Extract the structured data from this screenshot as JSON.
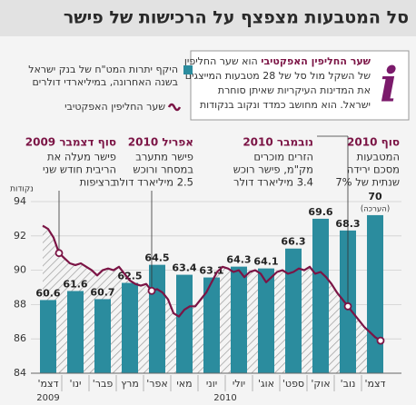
{
  "chart_data": {
    "type": "bar",
    "title": "סל המטבעות מצפצף על הרכישות של פישר",
    "info": {
      "heading": "שער החליפין האפקטיבי",
      "first_line_rest": "הוא שער החליפין",
      "lines": [
        "של השקל מול סל של 28 מטבעות המייצגים",
        "את המדינות העיקריות שאיתן סוחרת",
        "ישראל. הוא מחושב כמדד ונקוב בנקודות"
      ]
    },
    "y_unit": "נקודות",
    "categories": [
      "דצמ'",
      "ינו'",
      "פבר'",
      "מרץ",
      "אפר'",
      "מאי",
      "יוני",
      "יולי",
      "אוג'",
      "ספט'",
      "אוק'",
      "נוב'",
      "דצמ'"
    ],
    "years": [
      "2009",
      "2010"
    ],
    "xlim": [
      -0.5,
      12.5
    ],
    "ylim": [
      84,
      94
    ],
    "yticks": [
      84,
      86,
      88,
      90,
      92,
      94
    ],
    "y2lim": [
      52.5,
      71.5
    ],
    "grid": true,
    "series": [
      {
        "name": [
          "היקף יתרות המט\"ח של בנק ישראל",
          "בשנה האחרונה, במיליארדי דולרים"
        ],
        "type": "bar",
        "axis": "y2",
        "color": "#2b8c9e",
        "values": [
          60.6,
          61.6,
          60.7,
          62.5,
          64.5,
          63.4,
          63.1,
          64.3,
          64.1,
          66.3,
          69.6,
          68.3,
          70
        ],
        "estimate_note": "(הערכה)"
      },
      {
        "name": "שער החליפין האפקטיבי",
        "type": "line",
        "color": "#7b1445",
        "x": [
          -0.2,
          0,
          0.2,
          0.4,
          0.6,
          0.8,
          1,
          1.2,
          1.4,
          1.6,
          1.8,
          2,
          2.2,
          2.4,
          2.6,
          2.8,
          3,
          3.2,
          3.4,
          3.6,
          3.8,
          4,
          4.2,
          4.4,
          4.6,
          4.8,
          5,
          5.2,
          5.4,
          5.6,
          5.8,
          6,
          6.2,
          6.4,
          6.6,
          6.8,
          7,
          7.2,
          7.4,
          7.6,
          7.8,
          8,
          8.2,
          8.4,
          8.6,
          8.8,
          9,
          9.2,
          9.4,
          9.6,
          9.8,
          10,
          10.2,
          10.4,
          10.6,
          10.8,
          11,
          11.2,
          11.4,
          11.6,
          11.8,
          12,
          12.2
        ],
        "values": [
          92.6,
          92.4,
          91.9,
          91.0,
          90.7,
          90.4,
          90.3,
          90.4,
          90.2,
          90.0,
          89.7,
          90.0,
          90.1,
          90.0,
          90.2,
          89.8,
          89.4,
          89.2,
          89.1,
          89.2,
          88.8,
          88.9,
          88.7,
          88.3,
          87.5,
          87.3,
          87.7,
          87.9,
          87.9,
          88.3,
          88.7,
          89.3,
          89.9,
          90.2,
          90.1,
          89.9,
          90.0,
          89.6,
          89.9,
          90.0,
          89.8,
          89.3,
          89.6,
          89.9,
          90.0,
          89.8,
          89.9,
          90.1,
          90.0,
          90.2,
          89.8,
          89.9,
          89.6,
          89.2,
          88.7,
          88.3,
          87.9,
          87.5,
          87.1,
          86.7,
          86.4,
          86.1,
          85.9
        ]
      }
    ],
    "annotations": [
      {
        "title": "סוף דצמבר 2009",
        "lines": [
          "פישר מעלה את",
          "הריבית חודש שני",
          "ברציפות"
        ]
      },
      {
        "title": "אפריל 2010",
        "lines": [
          "פישר מתערב",
          "במסחר ורוכש",
          "2.5 מיליארד דולר"
        ]
      },
      {
        "title": "נובמבר 2010",
        "lines": [
          "הזרים מוכרים",
          "מק\"מ, פישר רוכש",
          "3.4 מיליארד דולר"
        ]
      },
      {
        "title": "סוף 2010",
        "lines": [
          "המטבעות",
          "מסכם ירידה",
          "שנתית של 7%"
        ]
      }
    ]
  }
}
